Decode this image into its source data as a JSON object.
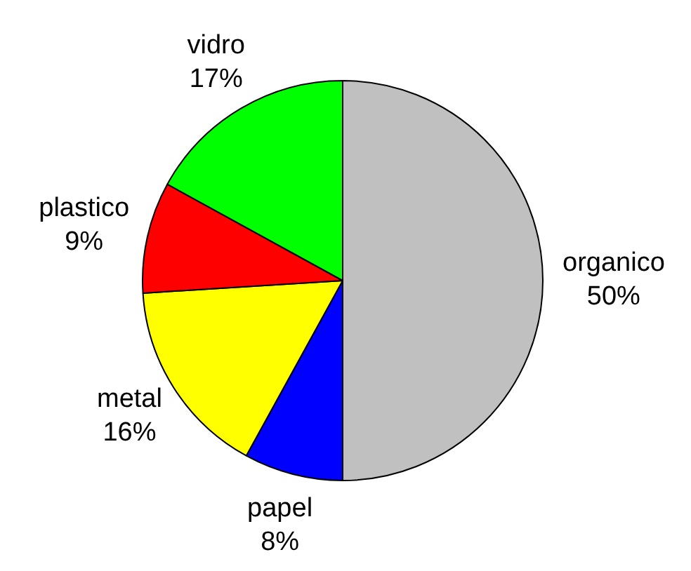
{
  "chart_data": {
    "type": "pie",
    "categories": [
      "organico",
      "papel",
      "metal",
      "plastico",
      "vidro"
    ],
    "values": [
      50,
      8,
      16,
      9,
      17
    ],
    "value_labels": [
      "50%",
      "8%",
      "16%",
      "9%",
      "17%"
    ],
    "colors": [
      "#c0c0c0",
      "#0000ff",
      "#ffff00",
      "#ff0000",
      "#00ff00"
    ],
    "legend": false
  }
}
